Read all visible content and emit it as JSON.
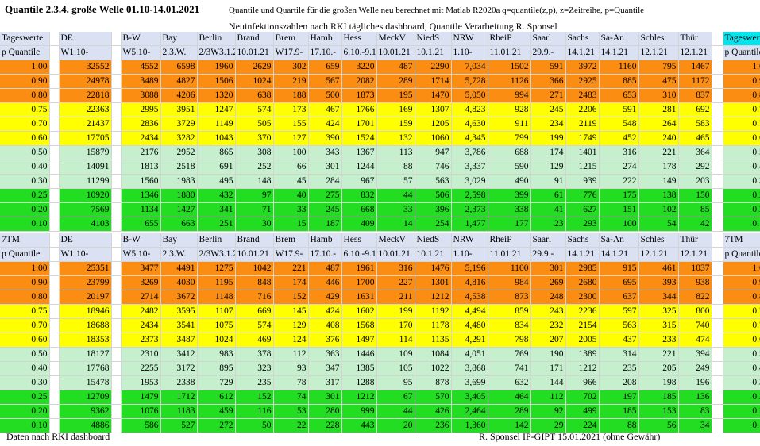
{
  "title": "Quantile 2.3.4. große Welle 01.10-14.01.2021",
  "description": "Quantile und Quartile für die großen Welle neu berechnet mit Matlab R2020a q=quantile(z,p), z=Zeitreihe, p=Quantile",
  "subtitle": "Neuinfektionszahlen nach RKI tägliches dashboard, Quantile Verarbeitung R. Sponsel",
  "columns": [
    "DE",
    "B-W",
    "Bay",
    "Berlin",
    "Brand",
    "Brem",
    "Hamb",
    "Hess",
    "MeckV",
    "NiedS",
    "NRW",
    "RheiP",
    "Saarl",
    "Sachs",
    "Sa-An",
    "Schles",
    "Thür"
  ],
  "dates": [
    "W1.10-",
    "W5.10-",
    "2.3.W.",
    "2/3W3.1.2",
    "10.01.21",
    "W17.9-",
    "17.10.-",
    "6.10.-9.1",
    "10.01.21",
    "10.1.21",
    "1.10-",
    "11.01.21",
    "29.9.-",
    "14.1.21",
    "14.1.21",
    "12.1.21",
    "12.1.21"
  ],
  "colors": {
    "orange": "#fb8d12",
    "yellow": "#ffff00",
    "lightgreen": "#c6efce",
    "green": "#22dd22",
    "header": "#d9e1f2",
    "cyan": "#00e5ee"
  },
  "tables": [
    {
      "label": "Tageswerte",
      "plabel": "p Quantile",
      "rows": [
        {
          "band": "orange",
          "p": "1.00",
          "v": [
            "32552",
            "4552",
            "6598",
            "1960",
            "2629",
            "302",
            "659",
            "3220",
            "487",
            "2290",
            "7,034",
            "1502",
            "591",
            "3972",
            "1160",
            "795",
            "1467"
          ]
        },
        {
          "band": "orange",
          "p": "0.90",
          "v": [
            "24978",
            "3489",
            "4827",
            "1506",
            "1024",
            "219",
            "567",
            "2082",
            "289",
            "1714",
            "5,728",
            "1126",
            "366",
            "2925",
            "885",
            "475",
            "1172"
          ]
        },
        {
          "band": "orange",
          "p": "0.80",
          "v": [
            "22818",
            "3088",
            "4206",
            "1320",
            "638",
            "188",
            "500",
            "1873",
            "195",
            "1470",
            "5,050",
            "994",
            "271",
            "2483",
            "653",
            "310",
            "837"
          ]
        },
        {
          "band": "yellow",
          "p": "0.75",
          "v": [
            "22363",
            "2995",
            "3951",
            "1247",
            "574",
            "173",
            "467",
            "1766",
            "169",
            "1307",
            "4,823",
            "928",
            "245",
            "2206",
            "591",
            "281",
            "692"
          ]
        },
        {
          "band": "yellow",
          "p": "0.70",
          "v": [
            "21437",
            "2836",
            "3729",
            "1149",
            "505",
            "155",
            "424",
            "1701",
            "159",
            "1205",
            "4,630",
            "911",
            "234",
            "2119",
            "548",
            "264",
            "583"
          ]
        },
        {
          "band": "yellow",
          "p": "0.60",
          "v": [
            "17705",
            "2434",
            "3282",
            "1043",
            "370",
            "127",
            "390",
            "1524",
            "132",
            "1060",
            "4,345",
            "799",
            "199",
            "1749",
            "452",
            "240",
            "465"
          ]
        },
        {
          "band": "lgreen",
          "p": "0.50",
          "v": [
            "15879",
            "2176",
            "2952",
            "865",
            "308",
            "100",
            "343",
            "1367",
            "113",
            "947",
            "3,786",
            "688",
            "174",
            "1401",
            "316",
            "221",
            "364"
          ]
        },
        {
          "band": "lgreen",
          "p": "0.40",
          "v": [
            "14091",
            "1813",
            "2518",
            "691",
            "252",
            "66",
            "301",
            "1244",
            "88",
            "746",
            "3,337",
            "590",
            "129",
            "1215",
            "274",
            "178",
            "292"
          ]
        },
        {
          "band": "lgreen",
          "p": "0.30",
          "v": [
            "11299",
            "1560",
            "1983",
            "495",
            "148",
            "45",
            "284",
            "967",
            "57",
            "563",
            "3,029",
            "490",
            "91",
            "939",
            "222",
            "149",
            "203"
          ]
        },
        {
          "band": "green",
          "p": "0.25",
          "v": [
            "10920",
            "1346",
            "1880",
            "432",
            "97",
            "40",
            "275",
            "832",
            "44",
            "506",
            "2,598",
            "399",
            "61",
            "776",
            "175",
            "138",
            "150"
          ]
        },
        {
          "band": "green",
          "p": "0.20",
          "v": [
            "7569",
            "1134",
            "1427",
            "341",
            "71",
            "33",
            "245",
            "668",
            "33",
            "396",
            "2,373",
            "338",
            "41",
            "627",
            "151",
            "102",
            "85"
          ]
        },
        {
          "band": "green",
          "p": "0.10",
          "v": [
            "4103",
            "655",
            "663",
            "251",
            "30",
            "15",
            "187",
            "409",
            "14",
            "254",
            "1,477",
            "177",
            "23",
            "293",
            "100",
            "54",
            "42"
          ]
        }
      ]
    },
    {
      "label": "7TM",
      "plabel": "p Quantile",
      "rows": [
        {
          "band": "orange",
          "p": "1.00",
          "v": [
            "25351",
            "3477",
            "4491",
            "1275",
            "1042",
            "221",
            "487",
            "1961",
            "316",
            "1476",
            "5,196",
            "1100",
            "301",
            "2985",
            "915",
            "461",
            "1037"
          ]
        },
        {
          "band": "orange",
          "p": "0.90",
          "v": [
            "23799",
            "3269",
            "4030",
            "1195",
            "848",
            "174",
            "446",
            "1700",
            "227",
            "1301",
            "4,816",
            "984",
            "269",
            "2680",
            "695",
            "393",
            "938"
          ]
        },
        {
          "band": "orange",
          "p": "0.80",
          "v": [
            "20197",
            "2714",
            "3672",
            "1148",
            "716",
            "152",
            "429",
            "1631",
            "211",
            "1212",
            "4,538",
            "873",
            "248",
            "2300",
            "637",
            "344",
            "822"
          ]
        },
        {
          "band": "yellow",
          "p": "0.75",
          "v": [
            "18946",
            "2482",
            "3595",
            "1107",
            "669",
            "145",
            "424",
            "1602",
            "199",
            "1192",
            "4,494",
            "859",
            "243",
            "2236",
            "597",
            "325",
            "800"
          ]
        },
        {
          "band": "yellow",
          "p": "0.70",
          "v": [
            "18688",
            "2434",
            "3541",
            "1075",
            "574",
            "129",
            "408",
            "1568",
            "170",
            "1178",
            "4,480",
            "834",
            "232",
            "2154",
            "563",
            "315",
            "740"
          ]
        },
        {
          "band": "yellow",
          "p": "0.60",
          "v": [
            "18353",
            "2373",
            "3487",
            "1024",
            "469",
            "124",
            "376",
            "1497",
            "114",
            "1135",
            "4,291",
            "798",
            "207",
            "2005",
            "437",
            "233",
            "474"
          ]
        },
        {
          "band": "lgreen",
          "p": "0.50",
          "v": [
            "18127",
            "2310",
            "3412",
            "983",
            "378",
            "112",
            "363",
            "1446",
            "109",
            "1084",
            "4,051",
            "769",
            "190",
            "1389",
            "314",
            "221",
            "394"
          ]
        },
        {
          "band": "lgreen",
          "p": "0.40",
          "v": [
            "17768",
            "2255",
            "3172",
            "895",
            "323",
            "93",
            "347",
            "1385",
            "105",
            "1022",
            "3,868",
            "741",
            "171",
            "1212",
            "235",
            "205",
            "249"
          ]
        },
        {
          "band": "lgreen",
          "p": "0.30",
          "v": [
            "15478",
            "1953",
            "2338",
            "729",
            "235",
            "78",
            "317",
            "1288",
            "95",
            "878",
            "3,699",
            "632",
            "144",
            "966",
            "208",
            "198",
            "196"
          ]
        },
        {
          "band": "green",
          "p": "0.25",
          "v": [
            "12709",
            "1479",
            "1712",
            "612",
            "152",
            "74",
            "301",
            "1212",
            "67",
            "570",
            "3,405",
            "464",
            "112",
            "702",
            "197",
            "185",
            "136"
          ]
        },
        {
          "band": "green",
          "p": "0.20",
          "v": [
            "9362",
            "1076",
            "1183",
            "459",
            "116",
            "53",
            "280",
            "999",
            "44",
            "426",
            "2,464",
            "289",
            "92",
            "499",
            "185",
            "153",
            "83"
          ]
        },
        {
          "band": "green",
          "p": "0.10",
          "v": [
            "4886",
            "586",
            "527",
            "272",
            "50",
            "22",
            "228",
            "443",
            "20",
            "236",
            "1,360",
            "142",
            "29",
            "224",
            "88",
            "56",
            "34"
          ]
        }
      ]
    }
  ],
  "footer": {
    "left": "Daten nach RKI dashboard",
    "right": "R. Sponsel IP-GIPT 15.01.2021 (ohne Gewähr)"
  }
}
